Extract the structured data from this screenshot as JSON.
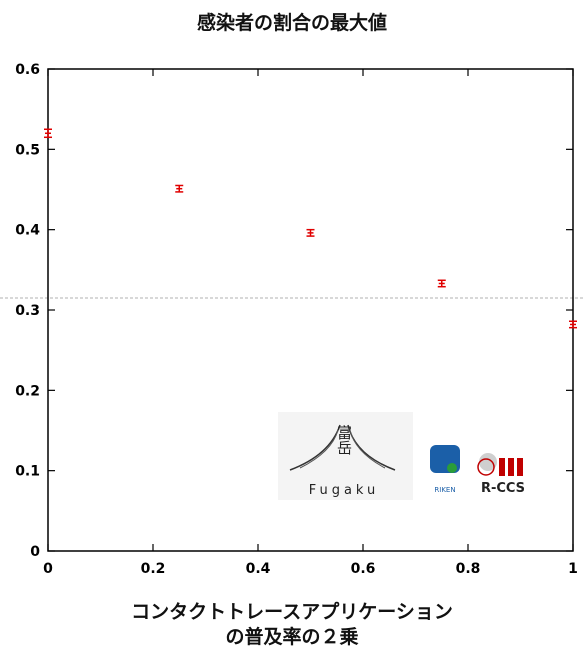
{
  "chart_data": {
    "type": "scatter",
    "title": "感染者の割合の最大値",
    "xlabel_lines": [
      "コンタクトトレースアプリケーション",
      "の普及率の２乗"
    ],
    "ylabel": "",
    "xlim": [
      0,
      1
    ],
    "ylim": [
      0,
      0.6
    ],
    "x_ticks": [
      "0",
      "0.2",
      "0.4",
      "0.6",
      "0.8",
      "1"
    ],
    "y_ticks": [
      "0",
      "0.1",
      "0.2",
      "0.3",
      "0.4",
      "0.5",
      "0.6"
    ],
    "grid": false,
    "reference_line": {
      "y": 0.315,
      "style": "dashed"
    },
    "series": [
      {
        "points": [
          {
            "x": 0.0,
            "y": 0.52,
            "err": 0.005
          },
          {
            "x": 0.25,
            "y": 0.451,
            "err": 0.004
          },
          {
            "x": 0.5,
            "y": 0.396,
            "err": 0.004
          },
          {
            "x": 0.75,
            "y": 0.333,
            "err": 0.004
          },
          {
            "x": 1.0,
            "y": 0.282,
            "err": 0.004
          }
        ]
      }
    ],
    "colors": {
      "points": "#e00000",
      "axes": "#000000",
      "reference": "#b0b0b0"
    }
  },
  "logos": {
    "fugaku_kanji": "富岳",
    "fugaku_text": "Fugaku",
    "riken_text": "RIKEN",
    "rccs_text": "R-CCS"
  }
}
